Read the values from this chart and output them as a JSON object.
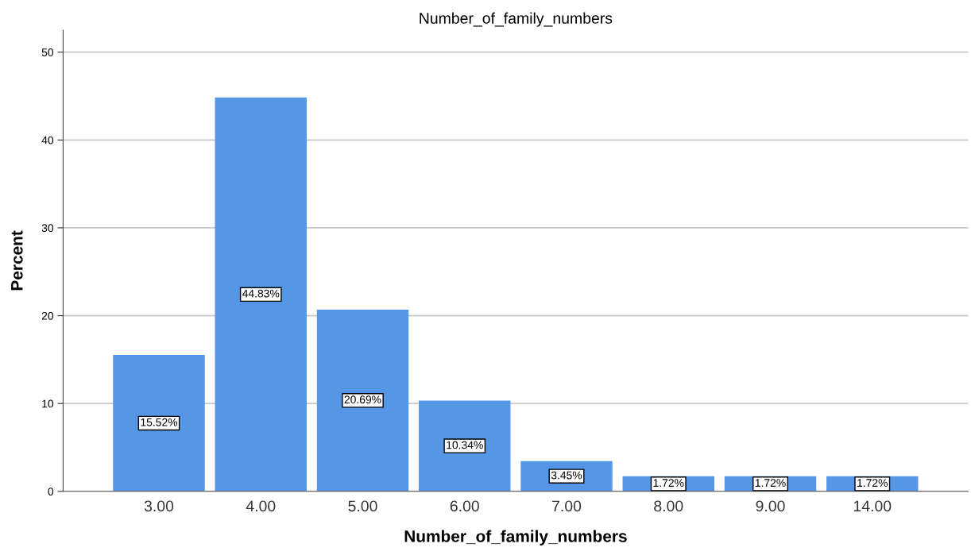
{
  "chart_data": {
    "type": "bar",
    "title": "Number_of_family_numbers",
    "xlabel": "Number_of_family_numbers",
    "ylabel": "Percent",
    "categories": [
      "3.00",
      "4.00",
      "5.00",
      "6.00",
      "7.00",
      "8.00",
      "9.00",
      "14.00"
    ],
    "values": [
      15.52,
      44.83,
      20.69,
      10.34,
      3.45,
      1.72,
      1.72,
      1.72
    ],
    "value_labels": [
      "15.52%",
      "44.83%",
      "20.69%",
      "10.34%",
      "3.45%",
      "1.72%",
      "1.72%",
      "1.72%"
    ],
    "color": "#5596e6",
    "ylim": [
      0,
      52.5
    ],
    "yticks": [
      0,
      10,
      20,
      30,
      40,
      50
    ],
    "grid": "y",
    "legend": false
  }
}
